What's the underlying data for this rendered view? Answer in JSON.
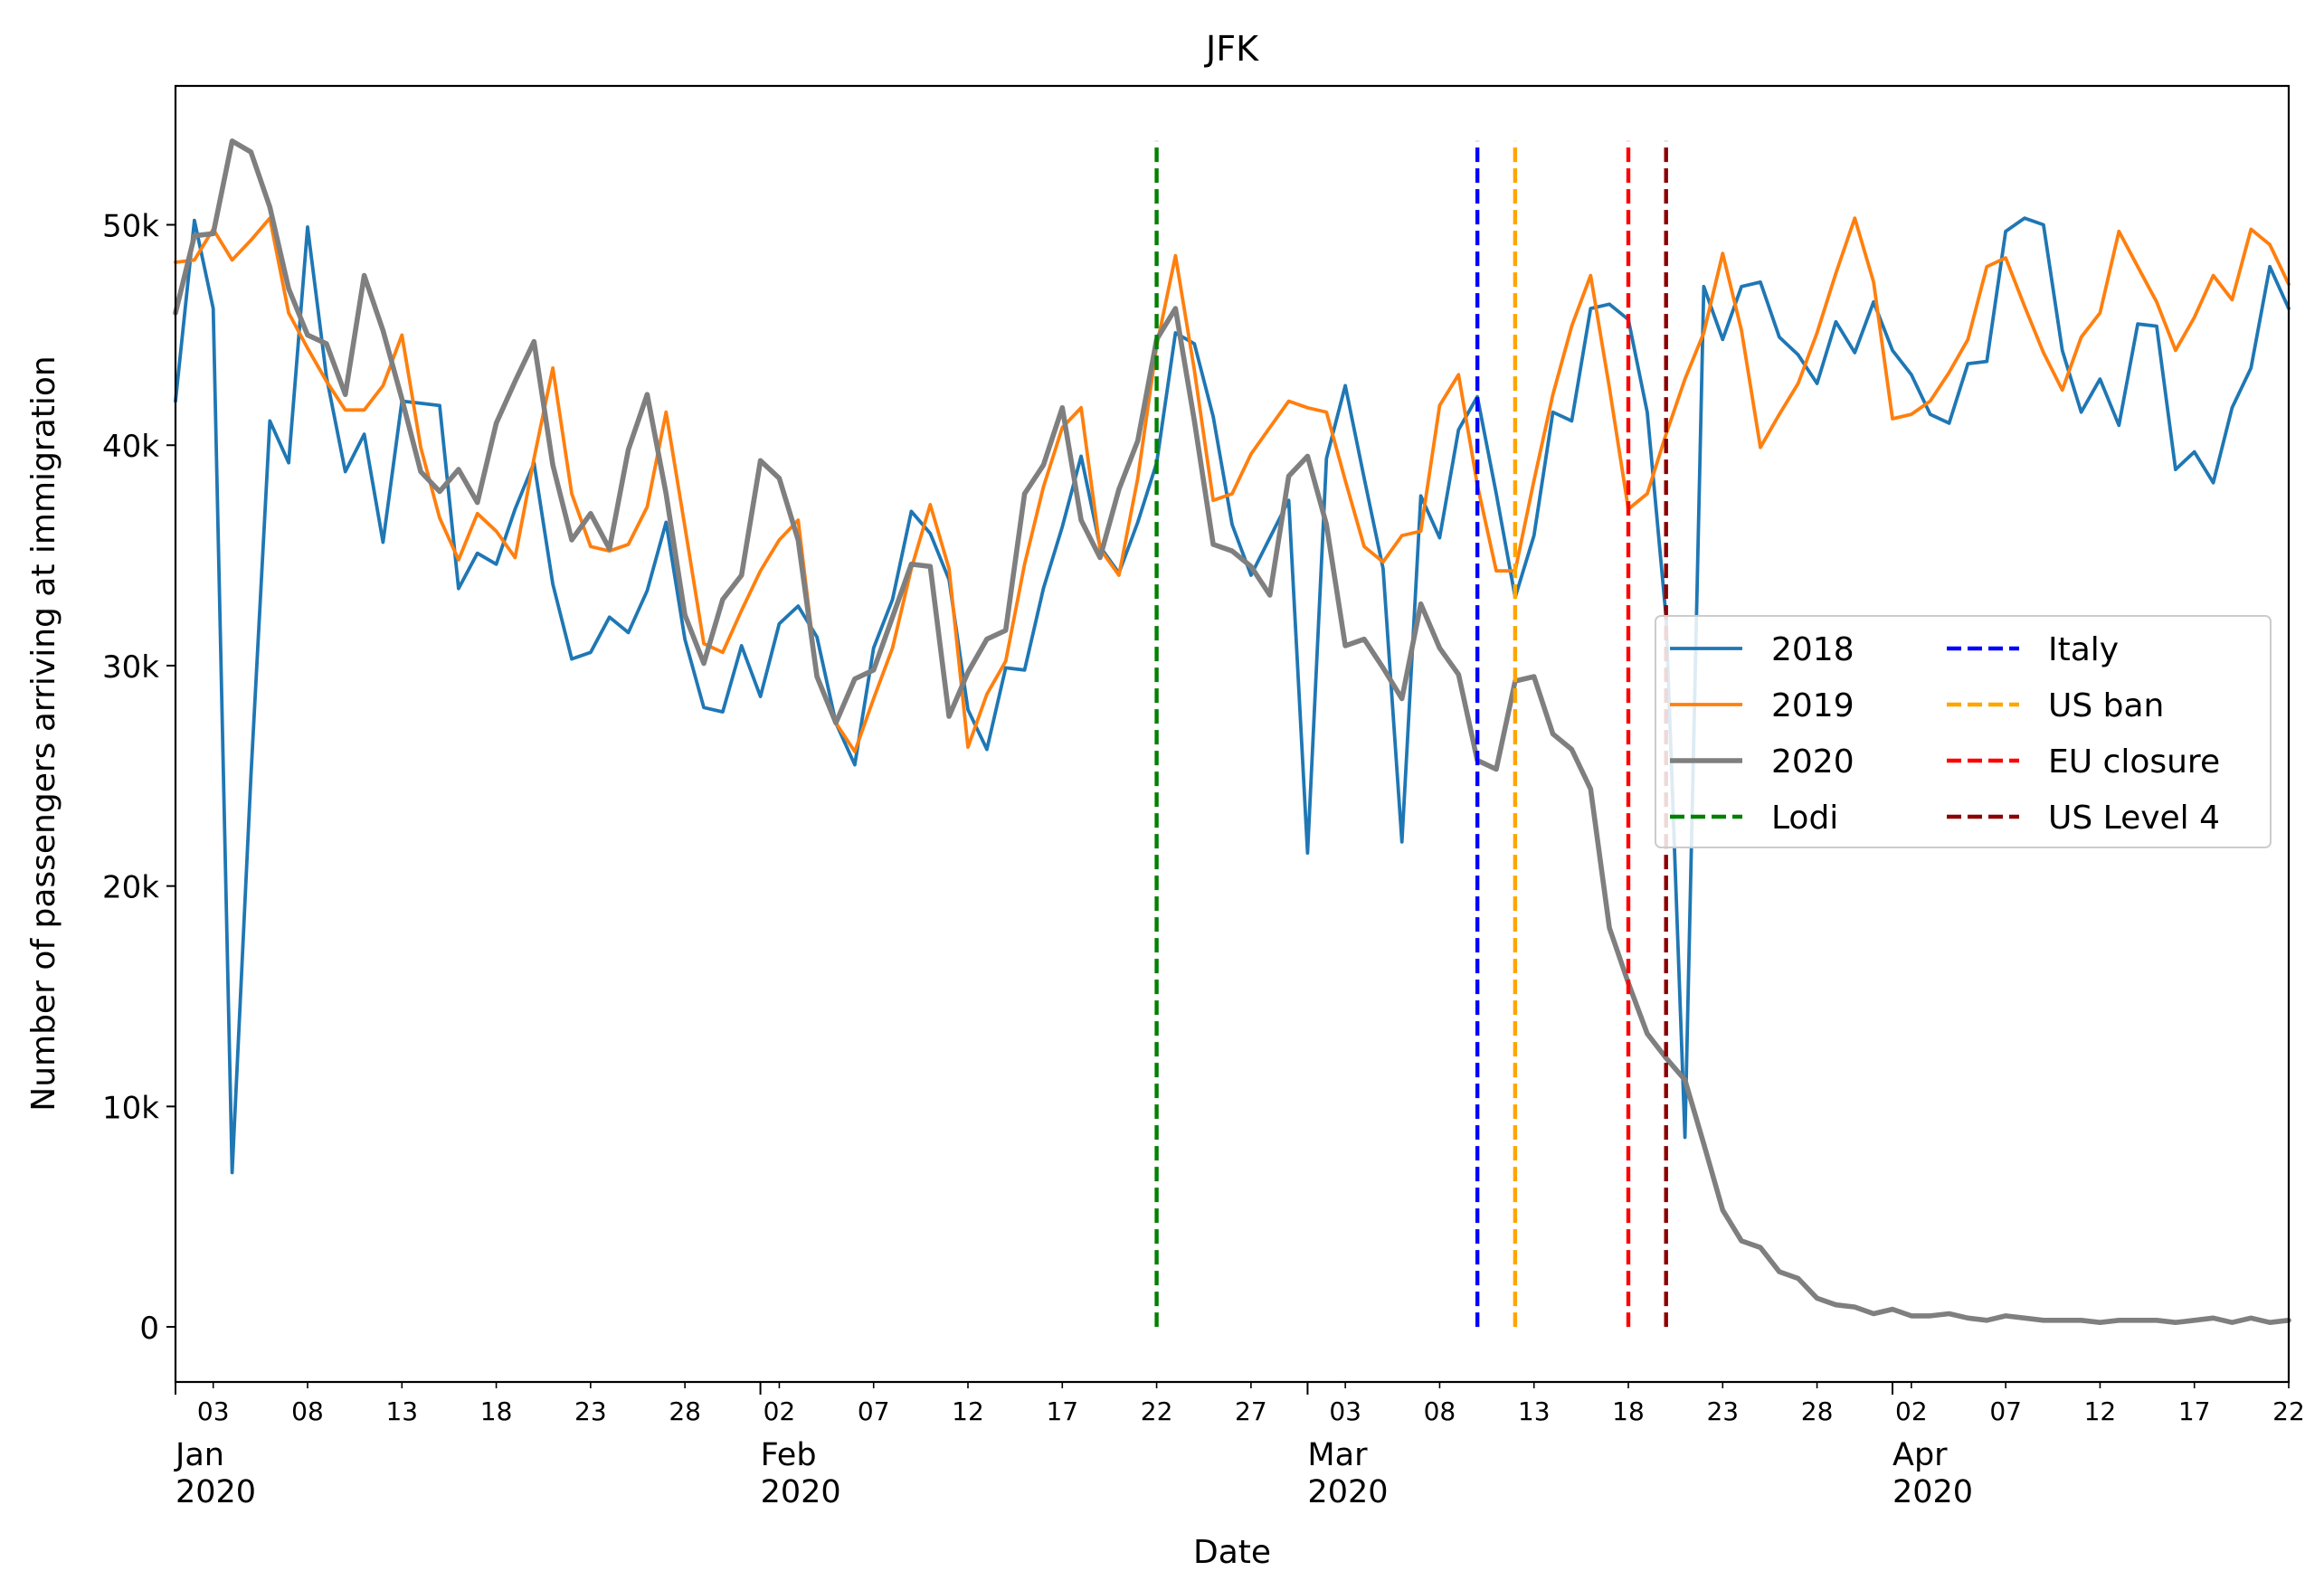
{
  "chart_data": {
    "type": "line",
    "title": "JFK",
    "xlabel": "Date",
    "ylabel": "Number of passengers arriving at immigration",
    "xlim_day": [
      1,
      113
    ],
    "ylim": [
      -2500,
      56300
    ],
    "yticks": [
      {
        "value": 0,
        "label": "0"
      },
      {
        "value": 10000,
        "label": "10k"
      },
      {
        "value": 20000,
        "label": "20k"
      },
      {
        "value": 30000,
        "label": "30k"
      },
      {
        "value": 40000,
        "label": "40k"
      },
      {
        "value": 50000,
        "label": "50k"
      }
    ],
    "minor_xticks": [
      {
        "day": 3,
        "label": "03"
      },
      {
        "day": 8,
        "label": "08"
      },
      {
        "day": 13,
        "label": "13"
      },
      {
        "day": 18,
        "label": "18"
      },
      {
        "day": 23,
        "label": "23"
      },
      {
        "day": 28,
        "label": "28"
      },
      {
        "day": 33,
        "label": "02"
      },
      {
        "day": 38,
        "label": "07"
      },
      {
        "day": 43,
        "label": "12"
      },
      {
        "day": 48,
        "label": "17"
      },
      {
        "day": 53,
        "label": "22"
      },
      {
        "day": 58,
        "label": "27"
      },
      {
        "day": 63,
        "label": "03"
      },
      {
        "day": 68,
        "label": "08"
      },
      {
        "day": 73,
        "label": "13"
      },
      {
        "day": 78,
        "label": "18"
      },
      {
        "day": 83,
        "label": "23"
      },
      {
        "day": 88,
        "label": "28"
      },
      {
        "day": 93,
        "label": "02"
      },
      {
        "day": 98,
        "label": "07"
      },
      {
        "day": 103,
        "label": "12"
      },
      {
        "day": 108,
        "label": "17"
      },
      {
        "day": 113,
        "label": "22"
      }
    ],
    "major_xticks": [
      {
        "day": 1,
        "month": "Jan",
        "year": "2020"
      },
      {
        "day": 32,
        "month": "Feb",
        "year": "2020"
      },
      {
        "day": 61,
        "month": "Mar",
        "year": "2020"
      },
      {
        "day": 92,
        "month": "Apr",
        "year": "2020"
      }
    ],
    "series": [
      {
        "name": "2018",
        "color": "#1f77b4",
        "start_day": 1,
        "values": [
          42000,
          50200,
          46200,
          7000,
          25000,
          41100,
          39200,
          49900,
          43100,
          38800,
          40500,
          35600,
          42000,
          41900,
          41800,
          33500,
          35100,
          34600,
          37100,
          39200,
          33700,
          30300,
          30600,
          32200,
          31500,
          33400,
          36500,
          31200,
          28100,
          27900,
          30900,
          28600,
          31900,
          32700,
          31300,
          27400,
          25500,
          30800,
          33000,
          37000,
          36000,
          33900,
          28000,
          26200,
          29900,
          29800,
          33500,
          36300,
          39500,
          35400,
          34200,
          36500,
          39200,
          45100,
          44600,
          41300,
          36400,
          34100,
          35800,
          37500,
          21500,
          39400,
          42700,
          38500,
          34400,
          22000,
          37700,
          35800,
          40700,
          42200,
          37800,
          33100,
          35900,
          41500,
          41100,
          46200,
          46400,
          45700,
          41500,
          32200,
          8600,
          47200,
          44800,
          47200,
          47400,
          44900,
          44100,
          42800,
          45600,
          44200,
          46500,
          44300,
          43200,
          41400,
          41000,
          43700,
          43800,
          49700,
          50300,
          50000,
          44300,
          41500,
          43000,
          40900,
          45500,
          45400,
          38900,
          39700,
          38300,
          41700,
          43500,
          48100,
          46200
        ]
      },
      {
        "name": "2019",
        "color": "#ff7f0e",
        "start_day": 1,
        "values": [
          48300,
          48400,
          49800,
          48400,
          49300,
          50300,
          46000,
          44400,
          42900,
          41600,
          41600,
          42700,
          45000,
          39900,
          36700,
          34800,
          36900,
          36100,
          34900,
          39400,
          43500,
          37800,
          35400,
          35200,
          35500,
          37200,
          41500,
          36300,
          31000,
          30600,
          32500,
          34300,
          35700,
          36600,
          29500,
          27400,
          26100,
          28500,
          30800,
          34400,
          37300,
          34400,
          26300,
          28700,
          30200,
          34600,
          38100,
          40800,
          41700,
          35300,
          34100,
          38500,
          44500,
          48600,
          43400,
          37500,
          37800,
          39600,
          40800,
          42000,
          41700,
          41500,
          38400,
          35400,
          34700,
          35900,
          36100,
          41800,
          43200,
          38200,
          34300,
          34300,
          38400,
          42300,
          45400,
          47700,
          42600,
          37100,
          37800,
          40500,
          43000,
          45100,
          48700,
          45200,
          39900,
          41400,
          42800,
          45100,
          47800,
          50300,
          47400,
          41200,
          41400,
          42000,
          43300,
          44800,
          48100,
          48500,
          46300,
          44200,
          42500,
          44900,
          46000,
          49700,
          48100,
          46500,
          44300,
          45800,
          47700,
          46600,
          49800,
          49100,
          47300
        ]
      },
      {
        "name": "2020",
        "color": "#7f7f7f",
        "start_day": 1,
        "values": [
          46000,
          49500,
          49600,
          53800,
          53300,
          50800,
          47100,
          45000,
          44600,
          42300,
          47700,
          45200,
          42100,
          38800,
          37900,
          38900,
          37400,
          41000,
          42900,
          44700,
          39100,
          35700,
          36900,
          35300,
          39800,
          42300,
          37800,
          32300,
          30100,
          33000,
          34100,
          39300,
          38500,
          35700,
          29500,
          27400,
          29400,
          29800,
          32200,
          34600,
          34500,
          27700,
          29700,
          31200,
          31600,
          37800,
          39100,
          41700,
          36600,
          34900,
          38000,
          40200,
          44800,
          46200,
          41100,
          35500,
          35200,
          34500,
          33200,
          38600,
          39500,
          36400,
          30900,
          31200,
          29900,
          28500,
          32800,
          30800,
          29600,
          25700,
          25300,
          29300,
          29500,
          26900,
          26200,
          24400,
          18100,
          15600,
          13300,
          12200,
          11200,
          8300,
          5300,
          3900,
          3600,
          2500,
          2200,
          1300,
          1000,
          900,
          600,
          800,
          500,
          500,
          600,
          400,
          300,
          500,
          400,
          300,
          300,
          300,
          200,
          300,
          300,
          300,
          200,
          300,
          400,
          200,
          400,
          200,
          300
        ]
      }
    ],
    "events": [
      {
        "name": "Lodi",
        "day": 53,
        "color": "#008000"
      },
      {
        "name": "Italy",
        "day": 70,
        "color": "#0000ff"
      },
      {
        "name": "US ban",
        "day": 72,
        "color": "#ffa500"
      },
      {
        "name": "EU closure",
        "day": 78,
        "color": "#ff0000"
      },
      {
        "name": "US Level 4",
        "day": 80,
        "color": "#8b0000"
      }
    ],
    "legend_position": "center-right"
  }
}
